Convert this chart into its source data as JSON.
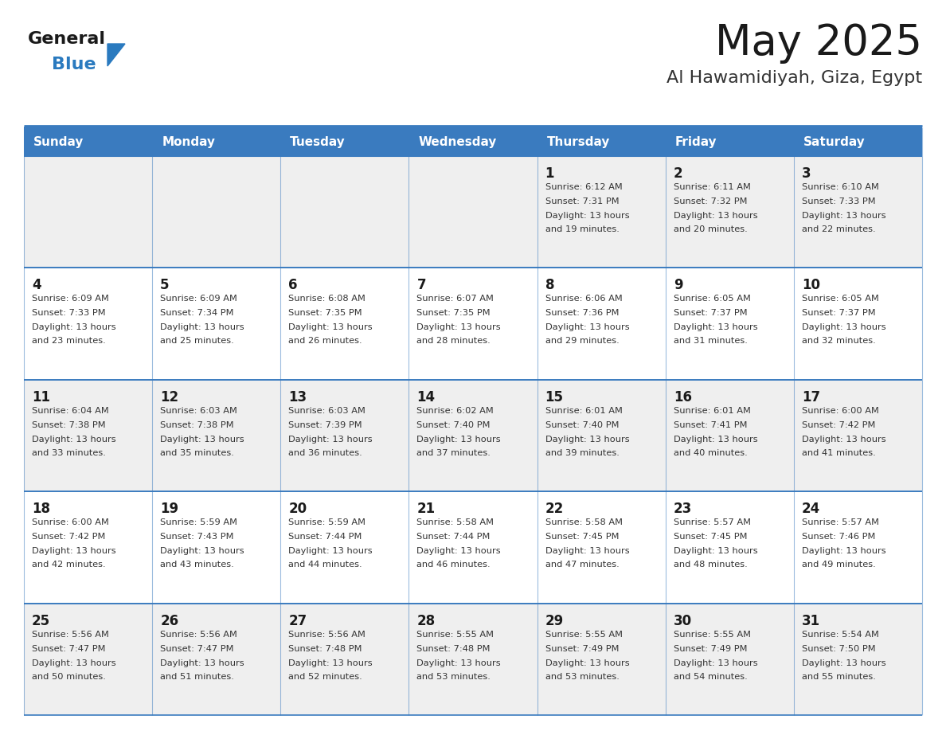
{
  "title": "May 2025",
  "subtitle": "Al Hawamidiyah, Giza, Egypt",
  "days_of_week": [
    "Sunday",
    "Monday",
    "Tuesday",
    "Wednesday",
    "Thursday",
    "Friday",
    "Saturday"
  ],
  "header_bg": "#3a7bbf",
  "header_text": "#ffffff",
  "row_bg_odd": "#efefef",
  "row_bg_even": "#ffffff",
  "border_color": "#3a7bbf",
  "title_color": "#1a1a1a",
  "subtitle_color": "#333333",
  "day_num_color": "#1a1a1a",
  "cell_text_color": "#333333",
  "logo_general_color": "#1a1a1a",
  "logo_blue_color": "#2a7abf",
  "logo_triangle_color": "#2a7abf",
  "weeks": [
    {
      "days": [
        {
          "date": "",
          "sunrise": "",
          "sunset": "",
          "daylight": ""
        },
        {
          "date": "",
          "sunrise": "",
          "sunset": "",
          "daylight": ""
        },
        {
          "date": "",
          "sunrise": "",
          "sunset": "",
          "daylight": ""
        },
        {
          "date": "",
          "sunrise": "",
          "sunset": "",
          "daylight": ""
        },
        {
          "date": "1",
          "sunrise": "6:12 AM",
          "sunset": "7:31 PM",
          "daylight": "13 hours and 19 minutes."
        },
        {
          "date": "2",
          "sunrise": "6:11 AM",
          "sunset": "7:32 PM",
          "daylight": "13 hours and 20 minutes."
        },
        {
          "date": "3",
          "sunrise": "6:10 AM",
          "sunset": "7:33 PM",
          "daylight": "13 hours and 22 minutes."
        }
      ]
    },
    {
      "days": [
        {
          "date": "4",
          "sunrise": "6:09 AM",
          "sunset": "7:33 PM",
          "daylight": "13 hours and 23 minutes."
        },
        {
          "date": "5",
          "sunrise": "6:09 AM",
          "sunset": "7:34 PM",
          "daylight": "13 hours and 25 minutes."
        },
        {
          "date": "6",
          "sunrise": "6:08 AM",
          "sunset": "7:35 PM",
          "daylight": "13 hours and 26 minutes."
        },
        {
          "date": "7",
          "sunrise": "6:07 AM",
          "sunset": "7:35 PM",
          "daylight": "13 hours and 28 minutes."
        },
        {
          "date": "8",
          "sunrise": "6:06 AM",
          "sunset": "7:36 PM",
          "daylight": "13 hours and 29 minutes."
        },
        {
          "date": "9",
          "sunrise": "6:05 AM",
          "sunset": "7:37 PM",
          "daylight": "13 hours and 31 minutes."
        },
        {
          "date": "10",
          "sunrise": "6:05 AM",
          "sunset": "7:37 PM",
          "daylight": "13 hours and 32 minutes."
        }
      ]
    },
    {
      "days": [
        {
          "date": "11",
          "sunrise": "6:04 AM",
          "sunset": "7:38 PM",
          "daylight": "13 hours and 33 minutes."
        },
        {
          "date": "12",
          "sunrise": "6:03 AM",
          "sunset": "7:38 PM",
          "daylight": "13 hours and 35 minutes."
        },
        {
          "date": "13",
          "sunrise": "6:03 AM",
          "sunset": "7:39 PM",
          "daylight": "13 hours and 36 minutes."
        },
        {
          "date": "14",
          "sunrise": "6:02 AM",
          "sunset": "7:40 PM",
          "daylight": "13 hours and 37 minutes."
        },
        {
          "date": "15",
          "sunrise": "6:01 AM",
          "sunset": "7:40 PM",
          "daylight": "13 hours and 39 minutes."
        },
        {
          "date": "16",
          "sunrise": "6:01 AM",
          "sunset": "7:41 PM",
          "daylight": "13 hours and 40 minutes."
        },
        {
          "date": "17",
          "sunrise": "6:00 AM",
          "sunset": "7:42 PM",
          "daylight": "13 hours and 41 minutes."
        }
      ]
    },
    {
      "days": [
        {
          "date": "18",
          "sunrise": "6:00 AM",
          "sunset": "7:42 PM",
          "daylight": "13 hours and 42 minutes."
        },
        {
          "date": "19",
          "sunrise": "5:59 AM",
          "sunset": "7:43 PM",
          "daylight": "13 hours and 43 minutes."
        },
        {
          "date": "20",
          "sunrise": "5:59 AM",
          "sunset": "7:44 PM",
          "daylight": "13 hours and 44 minutes."
        },
        {
          "date": "21",
          "sunrise": "5:58 AM",
          "sunset": "7:44 PM",
          "daylight": "13 hours and 46 minutes."
        },
        {
          "date": "22",
          "sunrise": "5:58 AM",
          "sunset": "7:45 PM",
          "daylight": "13 hours and 47 minutes."
        },
        {
          "date": "23",
          "sunrise": "5:57 AM",
          "sunset": "7:45 PM",
          "daylight": "13 hours and 48 minutes."
        },
        {
          "date": "24",
          "sunrise": "5:57 AM",
          "sunset": "7:46 PM",
          "daylight": "13 hours and 49 minutes."
        }
      ]
    },
    {
      "days": [
        {
          "date": "25",
          "sunrise": "5:56 AM",
          "sunset": "7:47 PM",
          "daylight": "13 hours and 50 minutes."
        },
        {
          "date": "26",
          "sunrise": "5:56 AM",
          "sunset": "7:47 PM",
          "daylight": "13 hours and 51 minutes."
        },
        {
          "date": "27",
          "sunrise": "5:56 AM",
          "sunset": "7:48 PM",
          "daylight": "13 hours and 52 minutes."
        },
        {
          "date": "28",
          "sunrise": "5:55 AM",
          "sunset": "7:48 PM",
          "daylight": "13 hours and 53 minutes."
        },
        {
          "date": "29",
          "sunrise": "5:55 AM",
          "sunset": "7:49 PM",
          "daylight": "13 hours and 53 minutes."
        },
        {
          "date": "30",
          "sunrise": "5:55 AM",
          "sunset": "7:49 PM",
          "daylight": "13 hours and 54 minutes."
        },
        {
          "date": "31",
          "sunrise": "5:54 AM",
          "sunset": "7:50 PM",
          "daylight": "13 hours and 55 minutes."
        }
      ]
    }
  ]
}
